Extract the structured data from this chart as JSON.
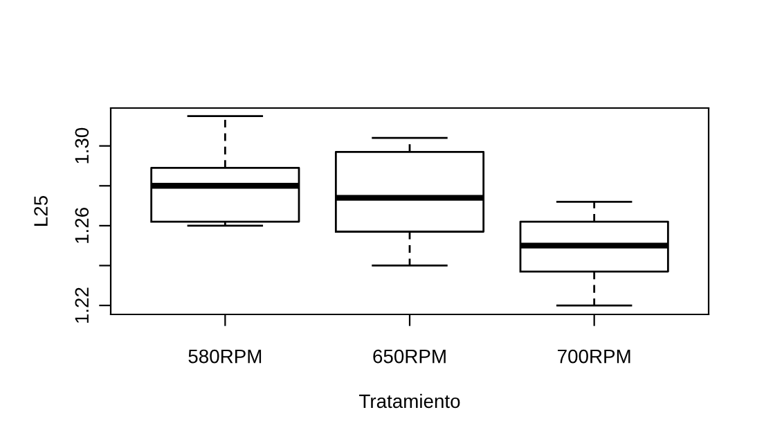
{
  "chart_data": {
    "type": "box",
    "xlabel": "Tratamiento",
    "ylabel": "L25",
    "categories": [
      "580RPM",
      "650RPM",
      "700RPM"
    ],
    "boxes": [
      {
        "low": 1.26,
        "q1": 1.262,
        "median": 1.28,
        "q3": 1.289,
        "high": 1.315
      },
      {
        "low": 1.24,
        "q1": 1.257,
        "median": 1.274,
        "q3": 1.297,
        "high": 1.304
      },
      {
        "low": 1.22,
        "q1": 1.237,
        "median": 1.25,
        "q3": 1.262,
        "high": 1.272
      }
    ],
    "ylim": [
      1.2155,
      1.319
    ],
    "yticks": [
      1.22,
      {
        "value": 1.24,
        "label": null
      },
      1.26,
      {
        "value": 1.28,
        "label": null
      },
      {
        "value": 1.3,
        "label": "1.30"
      }
    ],
    "grid": false,
    "legend": false
  }
}
